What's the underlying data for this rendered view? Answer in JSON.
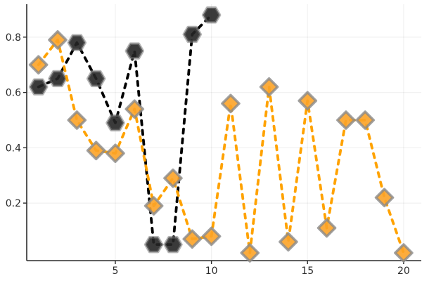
{
  "figure": {
    "background": "#ffffff"
  },
  "chart_data": {
    "type": "line",
    "title": "",
    "xlabel": "",
    "ylabel": "",
    "legend": "none",
    "grid": true,
    "linestyle": "dashed",
    "xlim": [
      0.39,
      20.92
    ],
    "ylim": [
      -0.008,
      0.919
    ],
    "x_ticks": [
      5,
      10,
      15,
      20
    ],
    "y_ticks": [
      0.2,
      0.4,
      0.6,
      0.8
    ],
    "axis_color": "#2b2b2b",
    "grid_color": "rgba(0,0,0,0.055)",
    "tick_label_color": "#2b2b2b",
    "series": [
      {
        "name": "black-hexagon-series",
        "marker": "hexagon",
        "line_color": "#000000",
        "marker_fill": "#252525",
        "marker_stroke": "#787878",
        "x": [
          1,
          2,
          3,
          4,
          5,
          6,
          7,
          8,
          9,
          10
        ],
        "y": [
          0.62,
          0.65,
          0.78,
          0.65,
          0.49,
          0.75,
          0.05,
          0.05,
          0.81,
          0.88
        ]
      },
      {
        "name": "orange-diamond-series",
        "marker": "diamond",
        "line_color": "#FFA200",
        "marker_fill": "#FCA327",
        "marker_stroke": "#8a8a8a",
        "x": [
          1,
          2,
          3,
          4,
          5,
          6,
          7,
          8,
          9,
          10,
          11,
          12,
          13,
          14,
          15,
          16,
          17,
          18,
          19,
          20
        ],
        "y": [
          0.7,
          0.79,
          0.5,
          0.39,
          0.38,
          0.54,
          0.19,
          0.29,
          0.07,
          0.08,
          0.56,
          0.02,
          0.62,
          0.06,
          0.57,
          0.11,
          0.5,
          0.5,
          0.22,
          0.02
        ]
      }
    ]
  }
}
